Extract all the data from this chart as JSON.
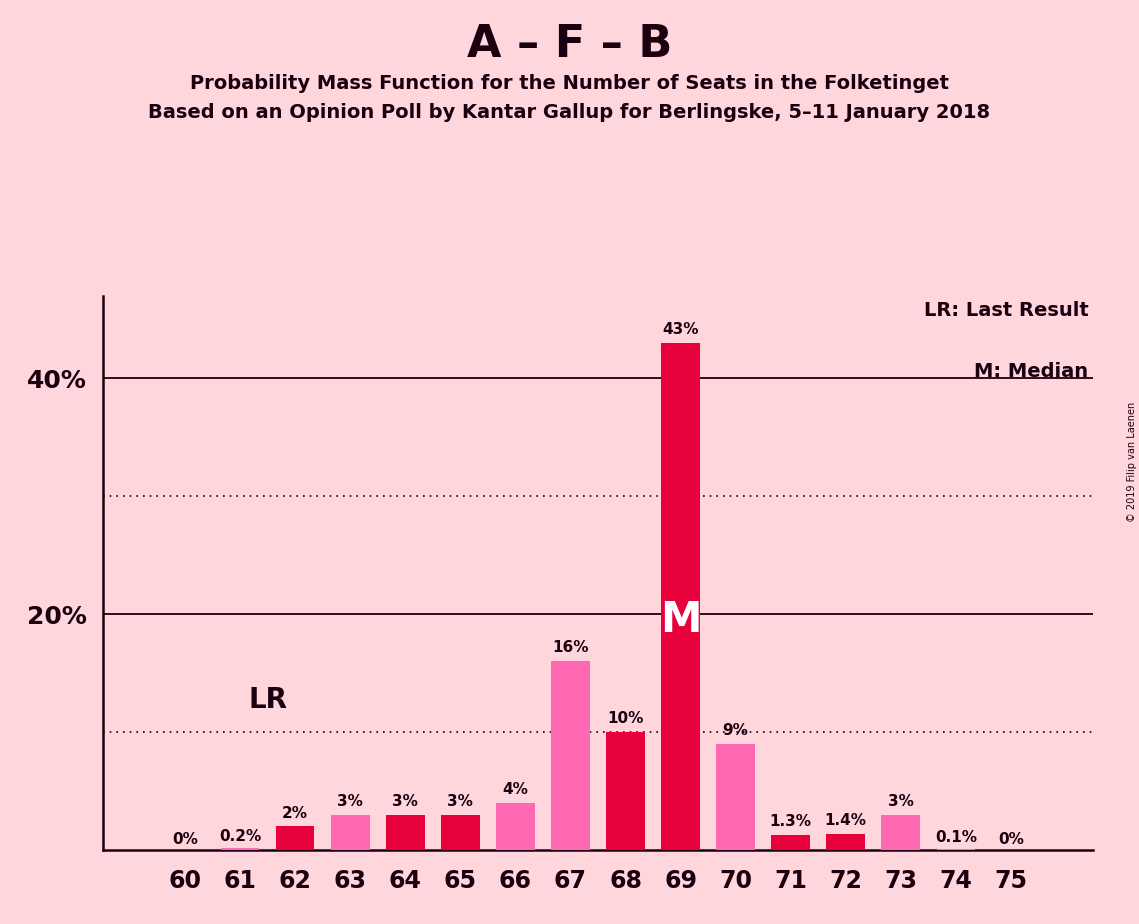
{
  "title_main": "A – F – B",
  "title_sub1": "Probability Mass Function for the Number of Seats in the Folketinget",
  "title_sub2": "Based on an Opinion Poll by Kantar Gallup for Berlingske, 5–11 January 2018",
  "copyright": "© 2019 Filip van Laenen",
  "legend_lr": "LR: Last Result",
  "legend_m": "M: Median",
  "seats": [
    60,
    61,
    62,
    63,
    64,
    65,
    66,
    67,
    68,
    69,
    70,
    71,
    72,
    73,
    74,
    75
  ],
  "values": [
    0.0,
    0.2,
    2.0,
    3.0,
    3.0,
    3.0,
    4.0,
    16.0,
    10.0,
    43.0,
    9.0,
    1.3,
    1.4,
    3.0,
    0.1,
    0.0
  ],
  "labels": [
    "0%",
    "0.2%",
    "2%",
    "3%",
    "3%",
    "3%",
    "4%",
    "16%",
    "10%",
    "43%",
    "9%",
    "1.3%",
    "1.4%",
    "3%",
    "0.1%",
    "0%"
  ],
  "bar_colors": [
    "#E8003C",
    "#FF69B4",
    "#E8003C",
    "#FF69B4",
    "#E8003C",
    "#E8003C",
    "#FF69B4",
    "#FF69B4",
    "#E8003C",
    "#E8003C",
    "#FF69B4",
    "#E8003C",
    "#E8003C",
    "#FF69B4",
    "#FF69B4",
    "#E8003C"
  ],
  "median_seat": 69,
  "lr_seat": 62,
  "background_color": "#FFD6DC",
  "plot_bg_color": "#FFD6DC",
  "ylim": [
    0,
    47
  ],
  "yticks": [
    0,
    10,
    20,
    30,
    40
  ],
  "solid_gridlines": [
    20,
    40
  ],
  "dotted_gridlines": [
    10,
    30
  ]
}
